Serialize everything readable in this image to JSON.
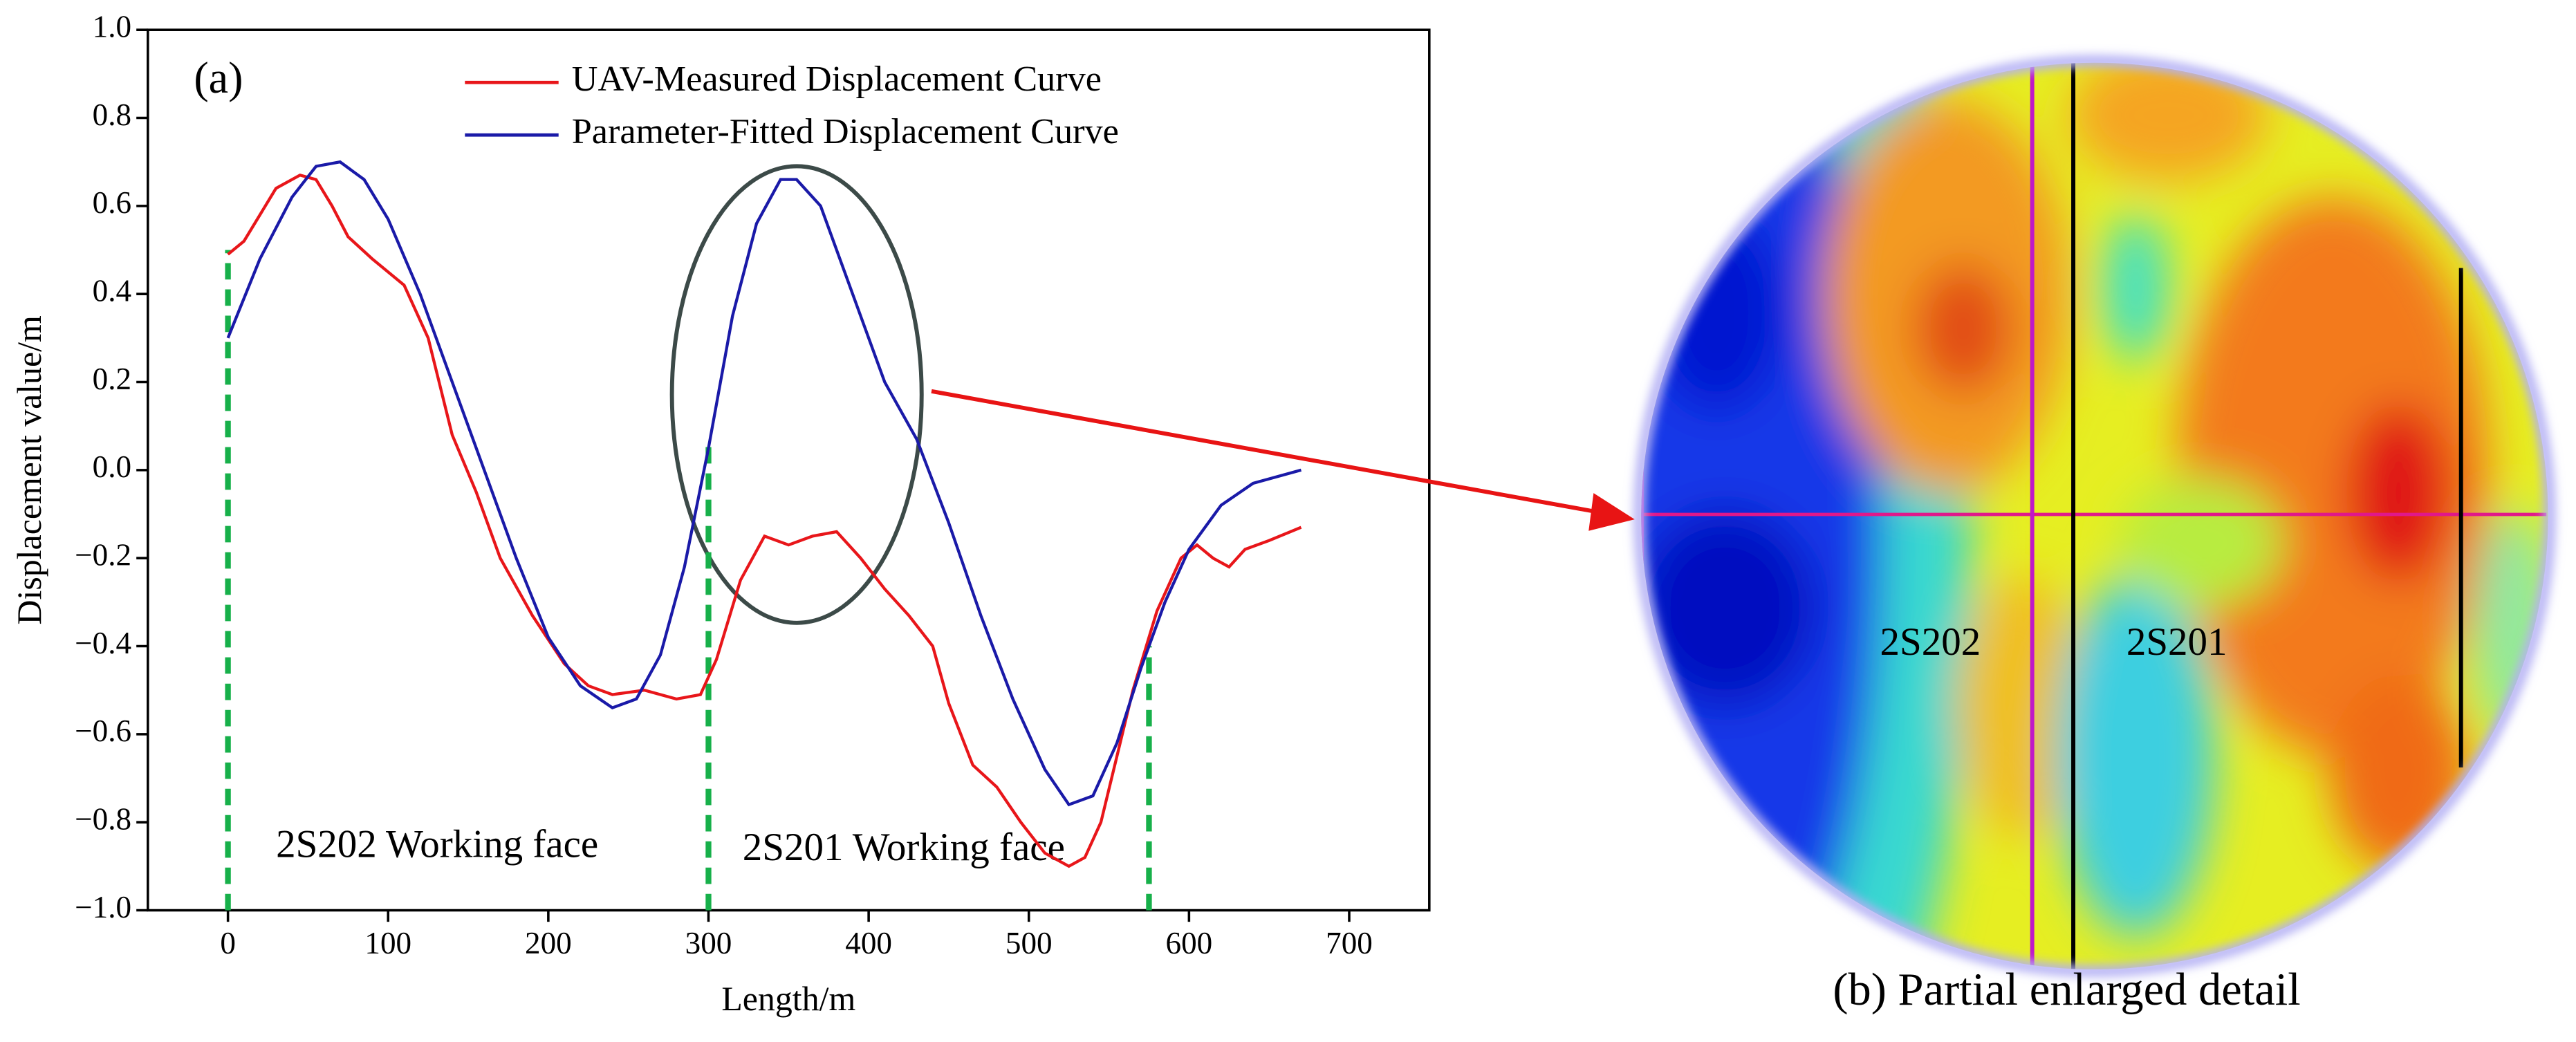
{
  "chart_data": {
    "type": "line",
    "panel_label": "(a)",
    "x_label": "Length/m",
    "y_label": "Displacement value/m",
    "xlim": [
      -50,
      750
    ],
    "ylim": [
      -1,
      1
    ],
    "xticks": [
      0,
      100,
      200,
      300,
      400,
      500,
      600,
      700
    ],
    "yticks": [
      {
        "value": -1.0,
        "label": "−1.0"
      },
      {
        "value": -0.8,
        "label": "−0.8"
      },
      {
        "value": -0.6,
        "label": "−0.6"
      },
      {
        "value": -0.4,
        "label": "−0.4"
      },
      {
        "value": -0.2,
        "label": "−0.2"
      },
      {
        "value": 0.0,
        "label": "0.0"
      },
      {
        "value": 0.2,
        "label": "0.2"
      },
      {
        "value": 0.4,
        "label": "0.4"
      },
      {
        "value": 0.6,
        "label": "0.6"
      },
      {
        "value": 0.8,
        "label": "0.8"
      },
      {
        "value": 1.0,
        "label": "1.0"
      }
    ],
    "series": [
      {
        "name": "UAV-Measured Displacement Curve",
        "color": "#e8161a",
        "x": [
          0,
          10,
          20,
          30,
          45,
          55,
          65,
          75,
          90,
          110,
          125,
          140,
          155,
          170,
          190,
          210,
          225,
          240,
          260,
          280,
          295,
          305,
          320,
          335,
          350,
          365,
          380,
          395,
          410,
          425,
          440,
          450,
          465,
          480,
          495,
          510,
          525,
          535,
          545,
          555,
          565,
          580,
          595,
          605,
          615,
          625,
          635,
          650,
          670
        ],
        "values": [
          0.49,
          0.52,
          0.58,
          0.64,
          0.67,
          0.66,
          0.6,
          0.53,
          0.48,
          0.42,
          0.3,
          0.08,
          -0.05,
          -0.2,
          -0.33,
          -0.44,
          -0.49,
          -0.51,
          -0.5,
          -0.52,
          -0.51,
          -0.43,
          -0.25,
          -0.15,
          -0.17,
          -0.15,
          -0.14,
          -0.2,
          -0.27,
          -0.33,
          -0.4,
          -0.53,
          -0.67,
          -0.72,
          -0.8,
          -0.87,
          -0.9,
          -0.88,
          -0.8,
          -0.65,
          -0.5,
          -0.32,
          -0.2,
          -0.17,
          -0.2,
          -0.22,
          -0.18,
          -0.16,
          -0.13
        ]
      },
      {
        "name": "Parameter-Fitted Displacement Curve",
        "color": "#1a1aa8",
        "x": [
          0,
          20,
          40,
          55,
          70,
          85,
          100,
          120,
          140,
          160,
          180,
          200,
          220,
          240,
          255,
          270,
          285,
          300,
          315,
          330,
          345,
          355,
          370,
          390,
          410,
          430,
          450,
          470,
          490,
          510,
          525,
          540,
          555,
          570,
          585,
          600,
          620,
          640,
          670
        ],
        "values": [
          0.3,
          0.48,
          0.62,
          0.69,
          0.7,
          0.66,
          0.57,
          0.4,
          0.2,
          0.0,
          -0.2,
          -0.38,
          -0.49,
          -0.54,
          -0.52,
          -0.42,
          -0.22,
          0.05,
          0.35,
          0.56,
          0.66,
          0.66,
          0.6,
          0.4,
          0.2,
          0.07,
          -0.12,
          -0.33,
          -0.52,
          -0.68,
          -0.76,
          -0.74,
          -0.62,
          -0.45,
          -0.3,
          -0.18,
          -0.08,
          -0.03,
          0.0
        ]
      }
    ],
    "boundaries": {
      "color": "#17b04a",
      "x": [
        0,
        300,
        575
      ],
      "y": [
        0.5,
        0.07,
        -0.4
      ]
    },
    "annotations": [
      "2S202 Working face",
      "2S201 Working face"
    ],
    "detail": {
      "caption": "(b) Partial enlarged detail",
      "labels": [
        "2S202",
        "2S201"
      ]
    }
  }
}
